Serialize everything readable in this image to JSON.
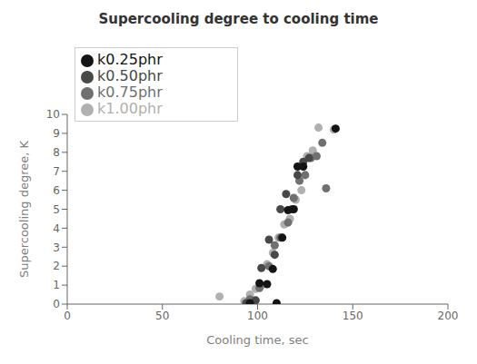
{
  "chart_data": {
    "type": "scatter",
    "title": "Supercooling degree to cooling time",
    "x_label": "Cooling time, sec",
    "y_label": "Supercooling degree, K",
    "xlim": [
      0,
      200
    ],
    "ylim": [
      0,
      10
    ],
    "xticks": [
      0,
      50,
      100,
      150,
      200
    ],
    "yticks": [
      0,
      1,
      2,
      3,
      4,
      5,
      6,
      7,
      8,
      9,
      10
    ],
    "grid": false,
    "legend": "upper left",
    "series": [
      {
        "name": "k1.00phr",
        "color": "#b0b0b0",
        "x": [
          80,
          93,
          96,
          99,
          102,
          105,
          108,
          111,
          114,
          117,
          120,
          123,
          126,
          129,
          132,
          140
        ],
        "y": [
          0.4,
          0.15,
          0.5,
          0.8,
          1.0,
          2.1,
          2.7,
          3.5,
          4.2,
          4.5,
          5.5,
          6.0,
          7.8,
          8.1,
          9.3,
          9.2
        ]
      },
      {
        "name": "k0.75phr",
        "color": "#707070",
        "x": [
          96,
          101,
          106,
          109,
          112,
          116,
          119,
          122,
          125,
          128,
          131,
          134,
          136
        ],
        "y": [
          0.25,
          0.85,
          2.0,
          3.1,
          3.5,
          4.3,
          5.6,
          6.5,
          6.8,
          7.7,
          7.8,
          8.5,
          6.1
        ]
      },
      {
        "name": "k0.50phr",
        "color": "#484848",
        "x": [
          94,
          99,
          102,
          106,
          109,
          112,
          115,
          118,
          121,
          124,
          127
        ],
        "y": [
          0.05,
          0.2,
          1.9,
          3.4,
          2.6,
          5.0,
          5.8,
          5.0,
          6.8,
          7.5,
          7.7
        ]
      },
      {
        "name": "k0.25phr",
        "color": "#141414",
        "x": [
          96,
          101,
          105,
          108,
          110,
          113,
          116,
          119,
          121,
          124,
          141
        ],
        "y": [
          0.05,
          1.1,
          1.05,
          1.85,
          0.05,
          3.5,
          4.95,
          5.0,
          7.25,
          7.25,
          9.25
        ]
      }
    ]
  }
}
